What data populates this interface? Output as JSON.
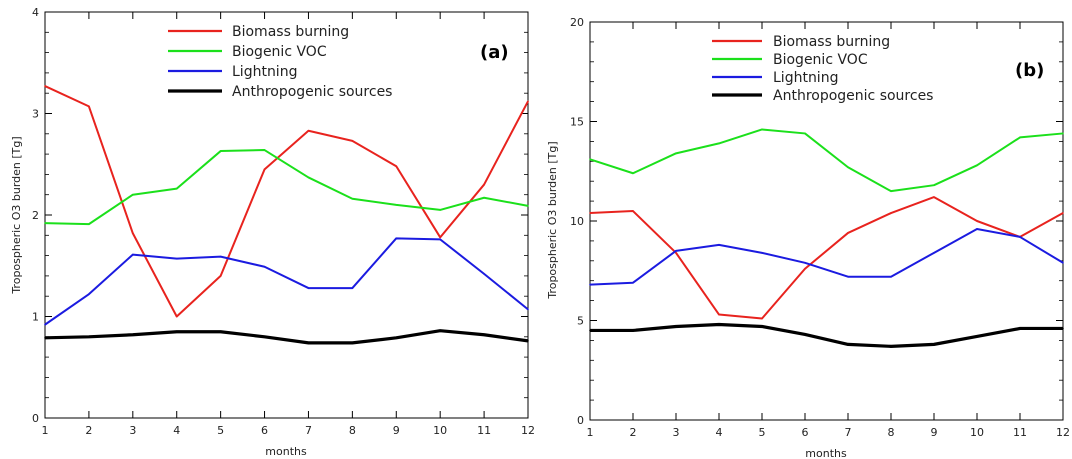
{
  "chart_data": [
    {
      "type": "line",
      "panel_label": "(a)",
      "xlabel": "months",
      "ylabel": "Tropospheric O3 burden [Tg]",
      "x": [
        1,
        2,
        3,
        4,
        5,
        6,
        7,
        8,
        9,
        10,
        11,
        12
      ],
      "xlim": [
        1,
        12
      ],
      "ylim": [
        0,
        4
      ],
      "yticks": [
        0,
        1,
        2,
        3,
        4
      ],
      "grid": false,
      "legend_position": "top-center",
      "series": [
        {
          "name": "Biomass burning",
          "color": "#e8231e",
          "values": [
            3.27,
            3.07,
            1.82,
            1.0,
            1.4,
            2.45,
            2.83,
            2.73,
            2.48,
            1.78,
            2.3,
            3.12
          ]
        },
        {
          "name": "Biogenic VOC",
          "color": "#1be01b",
          "values": [
            1.92,
            1.91,
            2.2,
            2.26,
            2.63,
            2.64,
            2.37,
            2.16,
            2.1,
            2.05,
            2.17,
            2.09
          ]
        },
        {
          "name": "Lightning",
          "color": "#1b1be0",
          "values": [
            0.92,
            1.22,
            1.61,
            1.57,
            1.59,
            1.49,
            1.28,
            1.28,
            1.77,
            1.76,
            1.42,
            1.07
          ]
        },
        {
          "name": "Anthropogenic sources",
          "color": "#000000",
          "values": [
            0.79,
            0.8,
            0.82,
            0.85,
            0.85,
            0.8,
            0.74,
            0.74,
            0.79,
            0.86,
            0.82,
            0.76
          ]
        }
      ]
    },
    {
      "type": "line",
      "panel_label": "(b)",
      "xlabel": "months",
      "ylabel": "Tropospheric O3 burden [Tg]",
      "x": [
        1,
        2,
        3,
        4,
        5,
        6,
        7,
        8,
        9,
        10,
        11,
        12
      ],
      "xlim": [
        1,
        12
      ],
      "ylim": [
        0,
        20
      ],
      "yticks": [
        0,
        5,
        10,
        15,
        20
      ],
      "grid": false,
      "legend_position": "top-center",
      "series": [
        {
          "name": "Biomass burning",
          "color": "#e8231e",
          "values": [
            10.4,
            10.5,
            8.4,
            5.3,
            5.1,
            7.6,
            9.4,
            10.4,
            11.2,
            10.0,
            9.2,
            10.4
          ]
        },
        {
          "name": "Biogenic VOC",
          "color": "#1be01b",
          "values": [
            13.1,
            12.4,
            13.4,
            13.9,
            14.6,
            14.4,
            12.7,
            11.5,
            11.8,
            12.8,
            14.2,
            14.4
          ]
        },
        {
          "name": "Lightning",
          "color": "#1b1be0",
          "values": [
            6.8,
            6.9,
            8.5,
            8.8,
            8.4,
            7.9,
            7.2,
            7.2,
            8.4,
            9.6,
            9.2,
            7.9
          ]
        },
        {
          "name": "Anthropogenic sources",
          "color": "#000000",
          "values": [
            4.5,
            4.5,
            4.7,
            4.8,
            4.7,
            4.3,
            3.8,
            3.7,
            3.8,
            4.2,
            4.6,
            4.6
          ]
        }
      ]
    }
  ]
}
